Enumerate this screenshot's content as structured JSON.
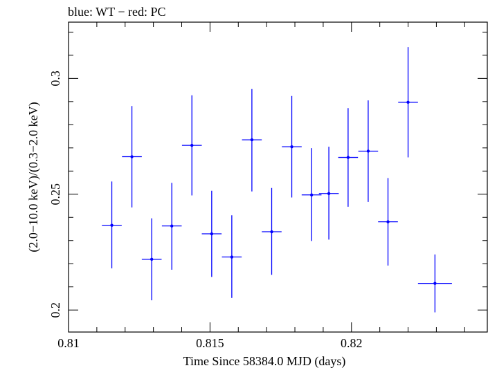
{
  "chart_data": {
    "type": "scatter",
    "title": "blue: WT − red: PC",
    "xlabel": "Time Since 58384.0 MJD (days)",
    "ylabel": "(2.0−10.0 keV)/(0.3−2.0 keV)",
    "xlim": [
      0.81,
      0.8248
    ],
    "ylim": [
      0.1905,
      0.3243
    ],
    "x_ticks": [
      0.81,
      0.815,
      0.82
    ],
    "x_tick_labels": [
      "0.81",
      "0.815",
      "0.82"
    ],
    "y_ticks": [
      0.2,
      0.25,
      0.3
    ],
    "y_tick_labels": [
      "0.2",
      "0.25",
      "0.3"
    ],
    "grid": false,
    "series": [
      {
        "color": "#0000ff",
        "points": [
          {
            "x": 0.81153,
            "y": 0.2366,
            "xerr": 0.00035,
            "yerr_low": 0.0186,
            "yerr_high": 0.0189
          },
          {
            "x": 0.81224,
            "y": 0.2662,
            "xerr": 0.00035,
            "yerr_low": 0.0219,
            "yerr_high": 0.0219
          },
          {
            "x": 0.81294,
            "y": 0.2219,
            "xerr": 0.00035,
            "yerr_low": 0.0177,
            "yerr_high": 0.0177
          },
          {
            "x": 0.81365,
            "y": 0.2363,
            "xerr": 0.00035,
            "yerr_low": 0.0189,
            "yerr_high": 0.0186
          },
          {
            "x": 0.81436,
            "y": 0.2711,
            "xerr": 0.00035,
            "yerr_low": 0.0216,
            "yerr_high": 0.0216
          },
          {
            "x": 0.81506,
            "y": 0.2329,
            "xerr": 0.00035,
            "yerr_low": 0.0186,
            "yerr_high": 0.0186
          },
          {
            "x": 0.81577,
            "y": 0.2229,
            "xerr": 0.00035,
            "yerr_low": 0.0177,
            "yerr_high": 0.018
          },
          {
            "x": 0.81648,
            "y": 0.2735,
            "xerr": 0.00035,
            "yerr_low": 0.0223,
            "yerr_high": 0.0219
          },
          {
            "x": 0.81718,
            "y": 0.2338,
            "xerr": 0.00035,
            "yerr_low": 0.0186,
            "yerr_high": 0.0189
          },
          {
            "x": 0.81789,
            "y": 0.2705,
            "xerr": 0.00035,
            "yerr_low": 0.0219,
            "yerr_high": 0.0219
          },
          {
            "x": 0.81859,
            "y": 0.2497,
            "xerr": 0.00035,
            "yerr_low": 0.0199,
            "yerr_high": 0.0202
          },
          {
            "x": 0.8192,
            "y": 0.2503,
            "xerr": 0.00035,
            "yerr_low": 0.0199,
            "yerr_high": 0.0202
          },
          {
            "x": 0.81988,
            "y": 0.2659,
            "xerr": 0.00035,
            "yerr_low": 0.0213,
            "yerr_high": 0.0213
          },
          {
            "x": 0.82059,
            "y": 0.2686,
            "xerr": 0.00035,
            "yerr_low": 0.0219,
            "yerr_high": 0.0219
          },
          {
            "x": 0.82129,
            "y": 0.2381,
            "xerr": 0.00035,
            "yerr_low": 0.0189,
            "yerr_high": 0.0189
          },
          {
            "x": 0.822,
            "y": 0.2897,
            "xerr": 0.00035,
            "yerr_low": 0.0238,
            "yerr_high": 0.0238
          },
          {
            "x": 0.82295,
            "y": 0.2115,
            "xerr": 0.0006,
            "yerr_low": 0.0125,
            "yerr_high": 0.0125
          }
        ]
      }
    ]
  }
}
